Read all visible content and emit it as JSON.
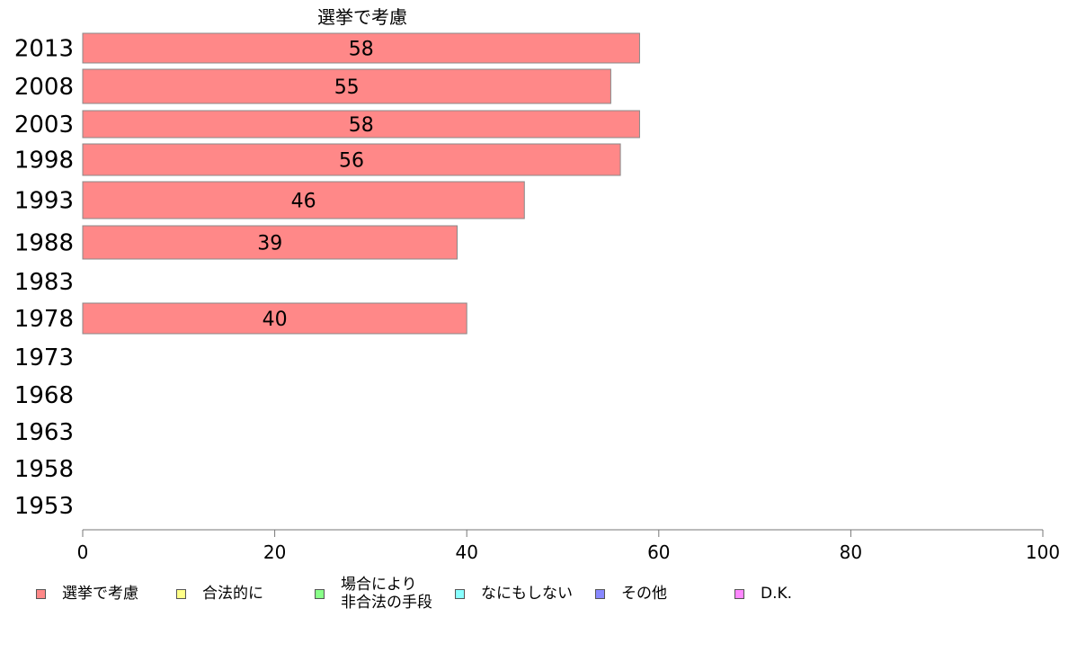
{
  "chart_data": {
    "type": "bar",
    "orientation": "horizontal",
    "title": "選挙で考慮",
    "categories": [
      "2013",
      "2008",
      "2003",
      "1998",
      "1993",
      "1988",
      "1983",
      "1978",
      "1973",
      "1968",
      "1963",
      "1958",
      "1953"
    ],
    "series": [
      {
        "name": "選挙で考慮",
        "color": "#ff8888",
        "values": [
          58,
          55,
          58,
          56,
          46,
          39,
          null,
          40,
          null,
          null,
          null,
          null,
          null
        ]
      }
    ],
    "xlim": [
      0,
      100
    ],
    "xticks": [
      0,
      20,
      40,
      60,
      80,
      100
    ],
    "grid": false,
    "legend_position": "bottom"
  },
  "legend": [
    {
      "label": "選挙で考慮",
      "color": "#ff8888"
    },
    {
      "label": "合法的に",
      "color": "#ffff88"
    },
    {
      "label": "場合により\n非合法の手段",
      "color": "#88ff88"
    },
    {
      "label": "なにもしない",
      "color": "#88ffff"
    },
    {
      "label": "その他",
      "color": "#8888ff"
    },
    {
      "label": "D.K.",
      "color": "#ff88ff"
    }
  ]
}
